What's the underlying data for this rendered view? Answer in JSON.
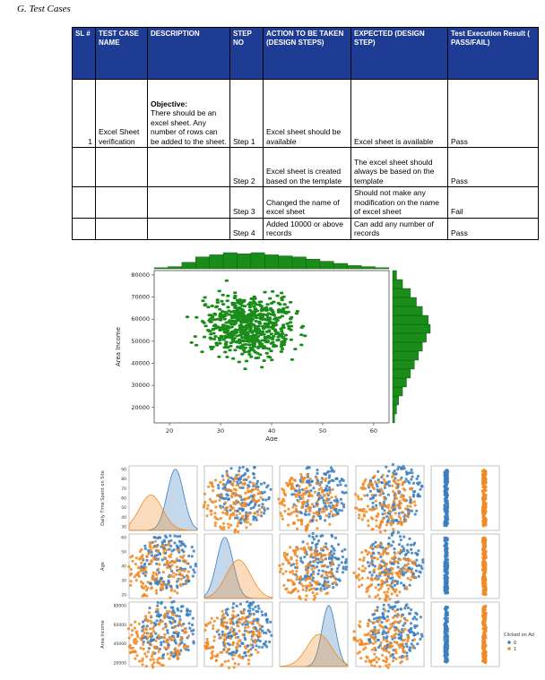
{
  "heading": "G.  Test Cases",
  "table": {
    "headers": [
      "SL #",
      "TEST CASE NAME",
      "DESCRIPTION",
      "STEP NO",
      "ACTION TO BE TAKEN (DESIGN STEPS)",
      "EXPECTED (DESIGN STEP)",
      "Test Execution Result ( PASS/FAIL)"
    ],
    "rows": [
      {
        "sl": "1",
        "name": "Excel Sheet verification",
        "desc_bold": "Objective:",
        "desc": "There should be an excel sheet. Any number of rows can be added to the sheet.",
        "step": "Step 1",
        "action": "Excel sheet should be available",
        "expected": "Excel sheet is available",
        "result": "Pass"
      },
      {
        "sl": "",
        "name": "",
        "desc_bold": "",
        "desc": "",
        "step": "Step 2",
        "action": "Excel sheet is created based on the template",
        "expected": "The excel sheet should always be based on the template",
        "result": "Pass"
      },
      {
        "sl": "",
        "name": "",
        "desc_bold": "",
        "desc": "",
        "step": "Step 3",
        "action": "Changed the name of excel sheet",
        "expected": "Should not make any modification on the name of excel sheet",
        "result": "Fail"
      },
      {
        "sl": "",
        "name": "",
        "desc_bold": "",
        "desc": "",
        "step": "Step 4",
        "action": "Added 10000 or above records",
        "expected": "Can add any number of records",
        "result": "Pass"
      }
    ]
  },
  "chart_data": [
    {
      "type": "scatter",
      "xlabel": "Age",
      "ylabel": "Area Income",
      "x_ticks": [
        20,
        30,
        40,
        50,
        60
      ],
      "y_ticks": [
        20000,
        30000,
        40000,
        50000,
        60000,
        70000,
        80000
      ],
      "xlim": [
        17,
        63
      ],
      "ylim": [
        13000,
        82000
      ],
      "color": "#1a8c1a",
      "x_hist": [
        1,
        2,
        6,
        11,
        13,
        15,
        14,
        15,
        13,
        12,
        11,
        9,
        7,
        5,
        3,
        2,
        1
      ],
      "y_hist": [
        1,
        2,
        3,
        5,
        7,
        9,
        11,
        13,
        15,
        17,
        19,
        18,
        15,
        12,
        9,
        5,
        2
      ]
    },
    {
      "type": "scatter",
      "variables": [
        "Daily Time Spent on Site",
        "Age",
        "Area Income"
      ],
      "legend_title": "Clicked on Ad",
      "legend": [
        "0",
        "1"
      ],
      "colors": {
        "0": "#3b7fc0",
        "1": "#f08a24"
      },
      "ticks": {
        "daily": [
          "30",
          "40",
          "50",
          "60",
          "70",
          "80",
          "90"
        ],
        "age": [
          "20",
          "30",
          "40",
          "50",
          "60"
        ],
        "income": [
          "20000",
          "40000",
          "60000",
          "80000"
        ]
      }
    }
  ]
}
